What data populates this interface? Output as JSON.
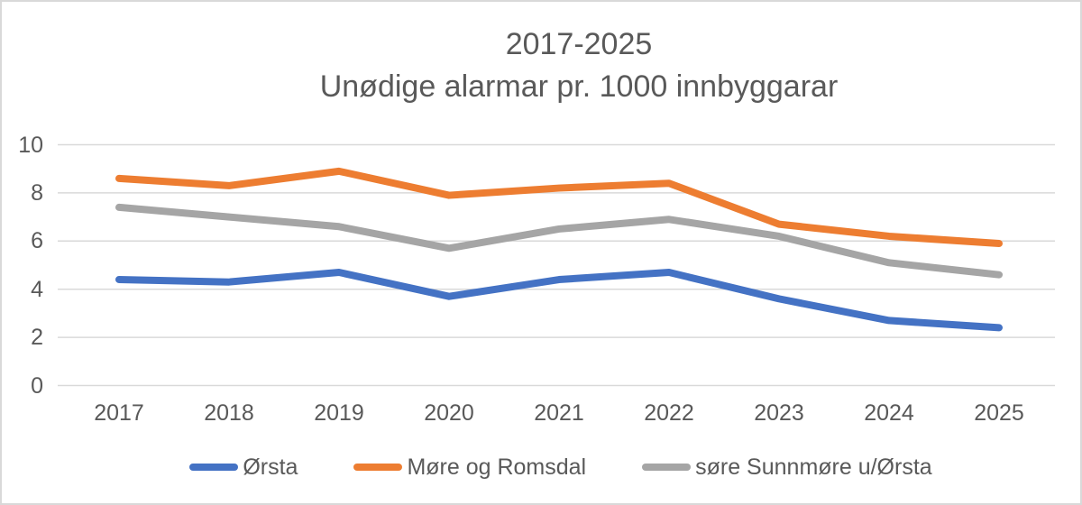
{
  "chart_data": {
    "type": "line",
    "title_line1": "2017-2025",
    "title_line2": "Unødige alarmar pr. 1000 innbyggarar",
    "categories": [
      "2017",
      "2018",
      "2019",
      "2020",
      "2021",
      "2022",
      "2023",
      "2024",
      "2025"
    ],
    "series": [
      {
        "name": "Ørsta",
        "color": "#4472C4",
        "values": [
          4.4,
          4.3,
          4.7,
          3.7,
          4.4,
          4.7,
          3.6,
          2.7,
          2.4
        ]
      },
      {
        "name": "Møre og Romsdal",
        "color": "#ED7D31",
        "values": [
          8.6,
          8.3,
          8.9,
          7.9,
          8.2,
          8.4,
          6.7,
          6.2,
          5.9
        ]
      },
      {
        "name": "søre Sunnmøre u/Ørsta",
        "color": "#A5A5A5",
        "values": [
          7.4,
          7.0,
          6.6,
          5.7,
          6.5,
          6.9,
          6.2,
          5.1,
          4.6
        ]
      }
    ],
    "ylim": [
      0,
      10
    ],
    "yticks": [
      0,
      2,
      4,
      6,
      8,
      10
    ],
    "grid": true,
    "legend_position": "bottom",
    "xlabel": "",
    "ylabel": "",
    "text_color": "#595959",
    "gridline_color": "#D9D9D9",
    "line_width": 8
  }
}
